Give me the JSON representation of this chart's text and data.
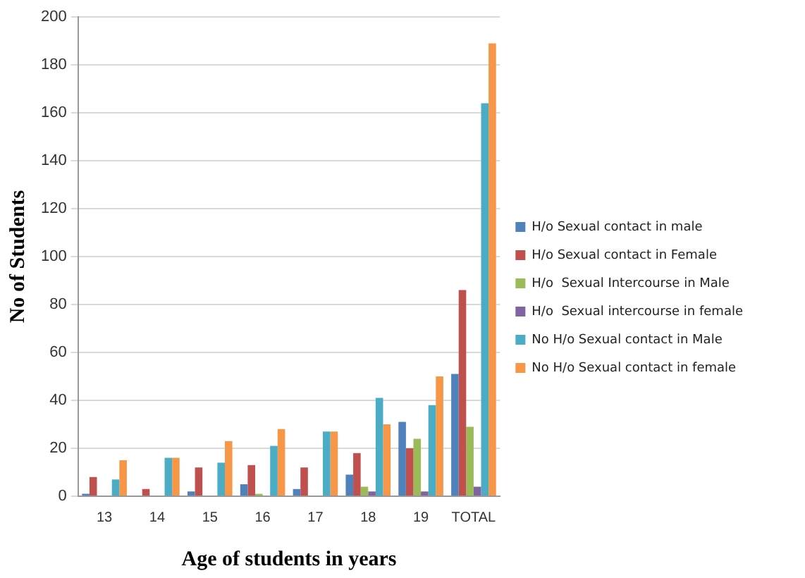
{
  "chart_data": {
    "type": "bar",
    "xlabel": "Age of students in years",
    "ylabel": "No of Students",
    "categories": [
      "13",
      "14",
      "15",
      "16",
      "17",
      "18",
      "19",
      "TOTAL"
    ],
    "series": [
      {
        "name": "H/o Sexual contact in male",
        "color": "#4f81bd",
        "values": [
          1,
          0,
          2,
          5,
          3,
          9,
          31,
          51
        ]
      },
      {
        "name": "H/o Sexual contact in Female",
        "color": "#c0504d",
        "values": [
          8,
          3,
          12,
          13,
          12,
          18,
          20,
          86
        ]
      },
      {
        "name": "H/o  Sexual Intercourse in Male",
        "color": "#9bbb59",
        "values": [
          0,
          0,
          0,
          1,
          0,
          4,
          24,
          29
        ]
      },
      {
        "name": "H/o  Sexual intercourse in female",
        "color": "#8064a2",
        "values": [
          0,
          0,
          0,
          0,
          0,
          2,
          2,
          4
        ]
      },
      {
        "name": "No H/o Sexual contact in Male",
        "color": "#4bacc6",
        "values": [
          7,
          16,
          14,
          21,
          27,
          41,
          38,
          164
        ]
      },
      {
        "name": "No H/o Sexual contact in female",
        "color": "#f79646",
        "values": [
          15,
          16,
          23,
          28,
          27,
          30,
          50,
          189
        ]
      }
    ],
    "ylim": [
      0,
      200
    ],
    "yticks": [
      0,
      20,
      40,
      60,
      80,
      100,
      120,
      140,
      160,
      180,
      200
    ],
    "grid": "y",
    "legend": "right"
  }
}
